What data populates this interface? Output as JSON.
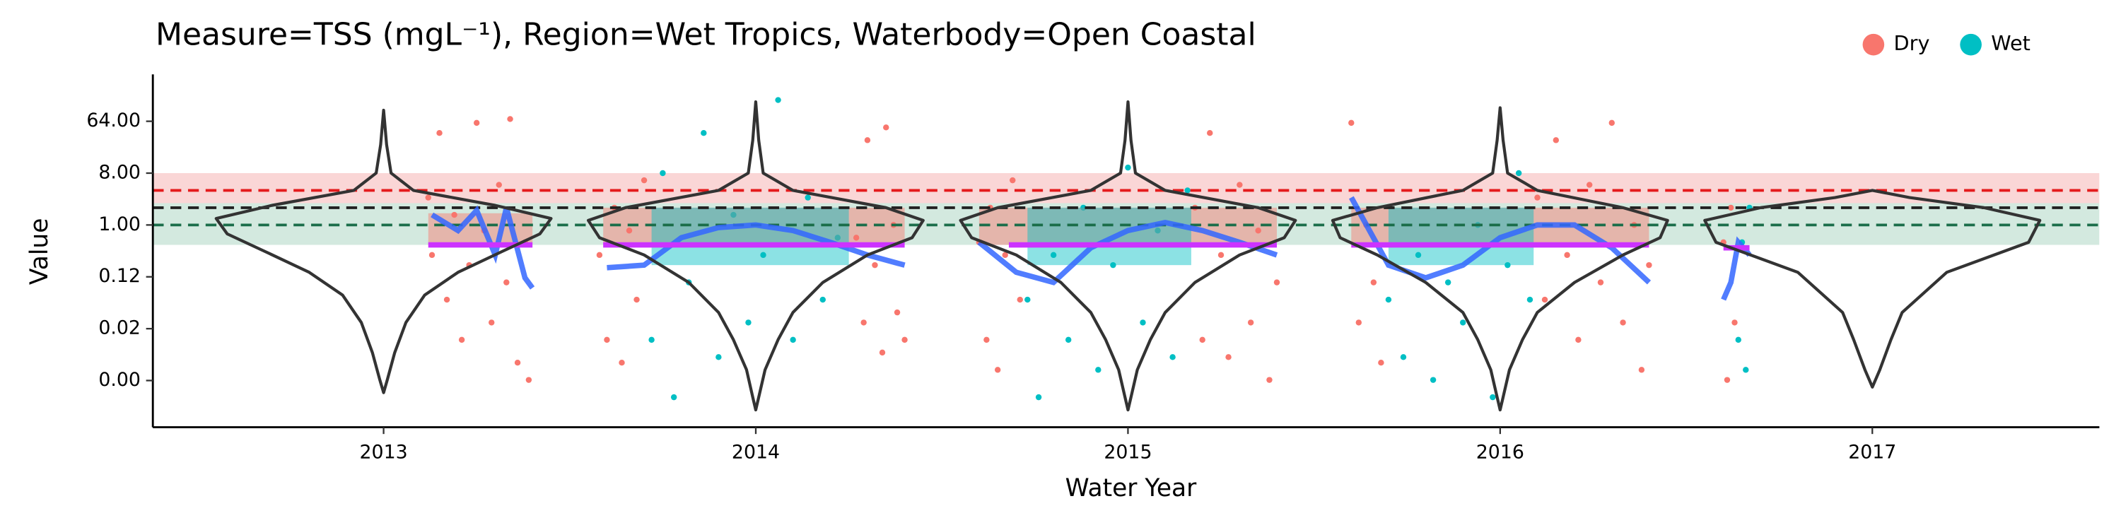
{
  "chart_data": {
    "type": "scatter",
    "title": "Measure=TSS (mgL⁻¹), Region=Wet Tropics, Waterbody=Open Coastal",
    "x_label": "Water Year",
    "y_label": "Value",
    "log_y": true,
    "grid": false,
    "legend_position": "top-right",
    "xlim": [
      2012.38,
      2017.61
    ],
    "xticks": [
      2013,
      2014,
      2015,
      2016,
      2017
    ],
    "ylim": [
      0.0003,
      420
    ],
    "yticks": [
      {
        "value": 0.001953125,
        "label": "0.00"
      },
      {
        "value": 0.015625,
        "label": "0.02"
      },
      {
        "value": 0.125,
        "label": "0.12"
      },
      {
        "value": 1,
        "label": "1.00"
      },
      {
        "value": 8,
        "label": "8.00"
      },
      {
        "value": 64,
        "label": "64.00"
      }
    ],
    "reference_bands": [
      {
        "range": [
          2.4,
          8
        ],
        "color": "#f8c8c8"
      },
      {
        "range": [
          0.45,
          2.4
        ],
        "color": "#c4e2d4"
      }
    ],
    "reference_lines": [
      {
        "value": 4,
        "color": "#e41a1c"
      },
      {
        "value": 2,
        "color": "#222222"
      },
      {
        "value": 1,
        "color": "#1b6e4a"
      }
    ],
    "series": [
      {
        "name": "Dry",
        "color": "#F8766D",
        "x": [
          2013.12,
          2013.13,
          2013.15,
          2013.17,
          2013.19,
          2013.21,
          2013.23,
          2013.25,
          2013.27,
          2013.29,
          2013.31,
          2013.33,
          2013.34,
          2013.36,
          2013.38,
          2013.39,
          2013.58,
          2013.6,
          2013.62,
          2013.64,
          2013.66,
          2013.68,
          2013.7,
          2014.27,
          2014.29,
          2014.3,
          2014.32,
          2014.34,
          2014.35,
          2014.37,
          2014.38,
          2014.4,
          2014.6,
          2014.62,
          2014.63,
          2014.65,
          2014.67,
          2014.69,
          2014.71,
          2015.18,
          2015.2,
          2015.22,
          2015.25,
          2015.27,
          2015.3,
          2015.33,
          2015.35,
          2015.38,
          2015.4,
          2015.6,
          2015.62,
          2015.64,
          2015.66,
          2015.68,
          2016.1,
          2016.12,
          2016.15,
          2016.18,
          2016.21,
          2016.24,
          2016.27,
          2016.3,
          2016.33,
          2016.36,
          2016.38,
          2016.4,
          2016.6,
          2016.61,
          2016.62,
          2016.63
        ],
        "y": [
          3,
          0.3,
          40,
          0.05,
          1.5,
          0.01,
          0.2,
          60,
          0.8,
          0.02,
          5,
          0.1,
          70,
          0.004,
          0.5,
          0.002,
          0.3,
          0.01,
          2,
          0.004,
          0.8,
          0.05,
          6,
          0.6,
          0.02,
          30,
          0.2,
          0.006,
          50,
          1,
          0.03,
          0.01,
          0.5,
          0.01,
          2,
          0.003,
          0.3,
          6,
          0.05,
          2,
          0.01,
          40,
          0.3,
          0.005,
          5,
          0.02,
          0.8,
          0.002,
          0.1,
          60,
          0.02,
          1,
          0.1,
          0.004,
          3,
          0.05,
          30,
          0.3,
          0.01,
          5,
          0.1,
          60,
          0.02,
          1,
          0.003,
          0.2,
          0.5,
          0.002,
          2,
          0.02
        ]
      },
      {
        "name": "Wet",
        "color": "#00BFC4",
        "x": [
          2013.72,
          2013.75,
          2013.78,
          2013.82,
          2013.86,
          2013.9,
          2013.94,
          2013.98,
          2014.02,
          2014.06,
          2014.1,
          2014.14,
          2014.18,
          2014.22,
          2014.73,
          2014.76,
          2014.8,
          2014.84,
          2014.88,
          2014.92,
          2014.96,
          2015.0,
          2015.04,
          2015.08,
          2015.12,
          2015.16,
          2015.7,
          2015.74,
          2015.78,
          2015.82,
          2015.86,
          2015.9,
          2015.94,
          2015.98,
          2016.02,
          2016.05,
          2016.08,
          2016.64,
          2016.65,
          2016.66,
          2016.67
        ],
        "y": [
          0.01,
          8,
          0.001,
          0.1,
          40,
          0.005,
          1.5,
          0.02,
          0.3,
          150,
          0.01,
          3,
          0.05,
          0.6,
          0.05,
          0.001,
          0.3,
          0.01,
          2,
          0.003,
          0.2,
          10,
          0.02,
          0.8,
          0.005,
          4,
          0.05,
          0.005,
          0.3,
          0.002,
          0.1,
          0.02,
          1,
          0.001,
          0.2,
          8,
          0.05,
          0.01,
          0.5,
          0.003,
          2
        ]
      }
    ],
    "ribbons": [
      {
        "series": 0,
        "x": [
          2013.12,
          2013.4
        ],
        "y": [
          0.45,
          1.6
        ]
      },
      {
        "series": 0,
        "x": [
          2013.59,
          2014.4
        ],
        "y": [
          0.45,
          2
        ]
      },
      {
        "series": 1,
        "x": [
          2013.72,
          2014.25
        ],
        "y": [
          0.2,
          2
        ]
      },
      {
        "series": 0,
        "x": [
          2014.6,
          2015.4
        ],
        "y": [
          0.45,
          2
        ]
      },
      {
        "series": 1,
        "x": [
          2014.73,
          2015.17
        ],
        "y": [
          0.2,
          2
        ]
      },
      {
        "series": 0,
        "x": [
          2015.6,
          2016.4
        ],
        "y": [
          0.45,
          2
        ]
      },
      {
        "series": 1,
        "x": [
          2015.7,
          2016.09
        ],
        "y": [
          0.2,
          2
        ]
      }
    ],
    "smoother": {
      "color": "#3366ff",
      "x": [
        2013.13,
        2013.2,
        2013.25,
        2013.3,
        2013.33,
        2013.38,
        2013.4,
        2013.5,
        2013.6,
        2013.7,
        2013.8,
        2013.9,
        2014.0,
        2014.1,
        2014.2,
        2014.3,
        2014.4,
        2014.5,
        2014.6,
        2014.7,
        2014.8,
        2014.9,
        2015.0,
        2015.1,
        2015.2,
        2015.3,
        2015.4,
        2015.5,
        2015.6,
        2015.7,
        2015.8,
        2015.9,
        2016.0,
        2016.1,
        2016.2,
        2016.3,
        2016.4,
        2016.5,
        2016.6,
        2016.62,
        2016.64,
        2016.67
      ],
      "y": [
        1.5,
        0.8,
        1.8,
        0.3,
        2,
        0.12,
        0.08,
        null,
        0.18,
        0.2,
        0.6,
        0.9,
        1.0,
        0.8,
        0.5,
        0.3,
        0.2,
        null,
        0.5,
        0.15,
        0.1,
        0.4,
        0.8,
        1.1,
        0.8,
        0.5,
        0.3,
        null,
        3,
        0.2,
        0.12,
        0.2,
        0.6,
        1.0,
        1.0,
        0.4,
        0.1,
        null,
        0.05,
        0.1,
        0.5,
        0.3
      ]
    },
    "medians": {
      "color": "#cc33ff",
      "segments": [
        {
          "x": [
            2013.12,
            2013.4
          ],
          "value": 0.45
        },
        {
          "x": [
            2013.59,
            2014.4
          ],
          "value": 0.45
        },
        {
          "x": [
            2014.68,
            2015.4
          ],
          "value": 0.45
        },
        {
          "x": [
            2015.6,
            2016.4
          ],
          "value": 0.45
        },
        {
          "x": [
            2016.6,
            2016.67
          ],
          "value": 0.4
        }
      ]
    },
    "violins": [
      {
        "x": 2013,
        "y": [
          0.0012,
          0.002,
          0.006,
          0.02,
          0.06,
          0.15,
          0.35,
          0.7,
          1.3,
          2.2,
          4,
          8,
          25,
          100
        ],
        "width": [
          0,
          0.01,
          0.03,
          0.06,
          0.11,
          0.2,
          0.32,
          0.42,
          0.45,
          0.3,
          0.08,
          0.02,
          0.008,
          0
        ]
      },
      {
        "x": 2014,
        "y": [
          0.0006,
          0.001,
          0.003,
          0.01,
          0.03,
          0.1,
          0.3,
          0.6,
          1.2,
          2,
          4,
          8,
          30,
          140
        ],
        "width": [
          0,
          0.008,
          0.025,
          0.06,
          0.1,
          0.18,
          0.3,
          0.42,
          0.45,
          0.35,
          0.1,
          0.02,
          0.008,
          0
        ]
      },
      {
        "x": 2015,
        "y": [
          0.0006,
          0.001,
          0.003,
          0.01,
          0.03,
          0.1,
          0.3,
          0.6,
          1.2,
          2,
          4,
          8,
          30,
          140
        ],
        "width": [
          0,
          0.008,
          0.025,
          0.06,
          0.1,
          0.18,
          0.3,
          0.42,
          0.45,
          0.35,
          0.1,
          0.02,
          0.008,
          0
        ]
      },
      {
        "x": 2016,
        "y": [
          0.0006,
          0.001,
          0.003,
          0.01,
          0.03,
          0.1,
          0.3,
          0.6,
          1.2,
          2,
          4,
          8,
          30,
          110
        ],
        "width": [
          0,
          0.008,
          0.025,
          0.06,
          0.1,
          0.2,
          0.33,
          0.43,
          0.45,
          0.33,
          0.1,
          0.02,
          0.008,
          0
        ]
      },
      {
        "x": 2017,
        "y": [
          0.0015,
          0.003,
          0.01,
          0.03,
          0.15,
          0.5,
          1.2,
          2,
          3,
          4
        ],
        "width": [
          0,
          0.02,
          0.05,
          0.08,
          0.2,
          0.42,
          0.45,
          0.3,
          0.1,
          0
        ]
      }
    ]
  }
}
